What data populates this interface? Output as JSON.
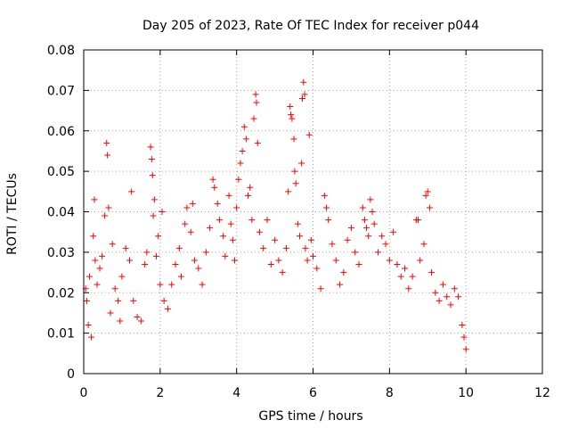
{
  "chart_data": {
    "type": "scatter",
    "title": "Day 205 of 2023, Rate Of TEC Index for receiver p044",
    "xlabel": "GPS time / hours",
    "ylabel": "ROTI / TECUs",
    "xlim": [
      0,
      12
    ],
    "ylim": [
      0,
      0.08
    ],
    "xticks": [
      "0",
      "2",
      "4",
      "6",
      "8",
      "10",
      "12"
    ],
    "yticks": [
      "0",
      "0.01",
      "0.02",
      "0.03",
      "0.04",
      "0.05",
      "0.06",
      "0.07",
      "0.08"
    ],
    "grid": true,
    "marker": "plus",
    "series_color": "#ff0000",
    "data_extent_hours": [
      0,
      10
    ],
    "series": [
      {
        "name": "ROTI",
        "points": [
          [
            0.05,
            0.021
          ],
          [
            0.08,
            0.018
          ],
          [
            0.12,
            0.012
          ],
          [
            0.15,
            0.024
          ],
          [
            0.2,
            0.009
          ],
          [
            0.25,
            0.034
          ],
          [
            0.28,
            0.043
          ],
          [
            0.3,
            0.028
          ],
          [
            0.35,
            0.022
          ],
          [
            0.42,
            0.026
          ],
          [
            0.48,
            0.029
          ],
          [
            0.55,
            0.039
          ],
          [
            0.6,
            0.057
          ],
          [
            0.62,
            0.054
          ],
          [
            0.65,
            0.041
          ],
          [
            0.7,
            0.015
          ],
          [
            0.75,
            0.032
          ],
          [
            0.82,
            0.021
          ],
          [
            0.9,
            0.018
          ],
          [
            0.95,
            0.013
          ],
          [
            1.0,
            0.024
          ],
          [
            1.1,
            0.031
          ],
          [
            1.2,
            0.028
          ],
          [
            1.25,
            0.045
          ],
          [
            1.3,
            0.018
          ],
          [
            1.4,
            0.014
          ],
          [
            1.5,
            0.013
          ],
          [
            1.6,
            0.027
          ],
          [
            1.65,
            0.03
          ],
          [
            1.75,
            0.056
          ],
          [
            1.78,
            0.053
          ],
          [
            1.8,
            0.049
          ],
          [
            1.82,
            0.039
          ],
          [
            1.85,
            0.043
          ],
          [
            1.9,
            0.029
          ],
          [
            1.95,
            0.034
          ],
          [
            2.0,
            0.022
          ],
          [
            2.05,
            0.04
          ],
          [
            2.1,
            0.018
          ],
          [
            2.2,
            0.016
          ],
          [
            2.3,
            0.022
          ],
          [
            2.4,
            0.027
          ],
          [
            2.5,
            0.031
          ],
          [
            2.55,
            0.024
          ],
          [
            2.65,
            0.037
          ],
          [
            2.7,
            0.041
          ],
          [
            2.8,
            0.035
          ],
          [
            2.85,
            0.042
          ],
          [
            2.9,
            0.028
          ],
          [
            3.0,
            0.026
          ],
          [
            3.1,
            0.022
          ],
          [
            3.2,
            0.03
          ],
          [
            3.3,
            0.036
          ],
          [
            3.38,
            0.048
          ],
          [
            3.42,
            0.046
          ],
          [
            3.5,
            0.042
          ],
          [
            3.55,
            0.038
          ],
          [
            3.65,
            0.034
          ],
          [
            3.7,
            0.029
          ],
          [
            3.8,
            0.044
          ],
          [
            3.85,
            0.037
          ],
          [
            3.9,
            0.033
          ],
          [
            3.95,
            0.028
          ],
          [
            4.0,
            0.041
          ],
          [
            4.05,
            0.048
          ],
          [
            4.1,
            0.052
          ],
          [
            4.15,
            0.055
          ],
          [
            4.2,
            0.061
          ],
          [
            4.25,
            0.058
          ],
          [
            4.3,
            0.044
          ],
          [
            4.35,
            0.046
          ],
          [
            4.4,
            0.038
          ],
          [
            4.45,
            0.063
          ],
          [
            4.5,
            0.069
          ],
          [
            4.52,
            0.067
          ],
          [
            4.55,
            0.057
          ],
          [
            4.6,
            0.035
          ],
          [
            4.7,
            0.031
          ],
          [
            4.8,
            0.038
          ],
          [
            4.9,
            0.027
          ],
          [
            5.0,
            0.033
          ],
          [
            5.1,
            0.028
          ],
          [
            5.2,
            0.025
          ],
          [
            5.3,
            0.031
          ],
          [
            5.35,
            0.045
          ],
          [
            5.4,
            0.066
          ],
          [
            5.42,
            0.064
          ],
          [
            5.45,
            0.063
          ],
          [
            5.5,
            0.058
          ],
          [
            5.52,
            0.05
          ],
          [
            5.55,
            0.047
          ],
          [
            5.6,
            0.037
          ],
          [
            5.65,
            0.034
          ],
          [
            5.7,
            0.052
          ],
          [
            5.72,
            0.068
          ],
          [
            5.75,
            0.072
          ],
          [
            5.78,
            0.069
          ],
          [
            5.8,
            0.031
          ],
          [
            5.85,
            0.028
          ],
          [
            5.9,
            0.059
          ],
          [
            5.95,
            0.033
          ],
          [
            6.0,
            0.029
          ],
          [
            6.1,
            0.026
          ],
          [
            6.2,
            0.021
          ],
          [
            6.3,
            0.044
          ],
          [
            6.35,
            0.041
          ],
          [
            6.4,
            0.038
          ],
          [
            6.5,
            0.032
          ],
          [
            6.6,
            0.028
          ],
          [
            6.7,
            0.022
          ],
          [
            6.8,
            0.025
          ],
          [
            6.9,
            0.033
          ],
          [
            7.0,
            0.036
          ],
          [
            7.1,
            0.03
          ],
          [
            7.2,
            0.027
          ],
          [
            7.3,
            0.041
          ],
          [
            7.35,
            0.038
          ],
          [
            7.4,
            0.036
          ],
          [
            7.45,
            0.034
          ],
          [
            7.5,
            0.043
          ],
          [
            7.55,
            0.04
          ],
          [
            7.6,
            0.037
          ],
          [
            7.7,
            0.03
          ],
          [
            7.8,
            0.034
          ],
          [
            7.9,
            0.032
          ],
          [
            8.0,
            0.028
          ],
          [
            8.1,
            0.035
          ],
          [
            8.2,
            0.027
          ],
          [
            8.3,
            0.024
          ],
          [
            8.4,
            0.026
          ],
          [
            8.5,
            0.021
          ],
          [
            8.6,
            0.024
          ],
          [
            8.7,
            0.038
          ],
          [
            8.75,
            0.038
          ],
          [
            8.8,
            0.028
          ],
          [
            8.9,
            0.032
          ],
          [
            8.95,
            0.044
          ],
          [
            9.0,
            0.045
          ],
          [
            9.05,
            0.041
          ],
          [
            9.1,
            0.025
          ],
          [
            9.2,
            0.02
          ],
          [
            9.3,
            0.018
          ],
          [
            9.4,
            0.022
          ],
          [
            9.5,
            0.019
          ],
          [
            9.6,
            0.017
          ],
          [
            9.7,
            0.021
          ],
          [
            9.8,
            0.019
          ],
          [
            9.9,
            0.012
          ],
          [
            9.95,
            0.009
          ],
          [
            10.0,
            0.006
          ]
        ]
      }
    ]
  }
}
